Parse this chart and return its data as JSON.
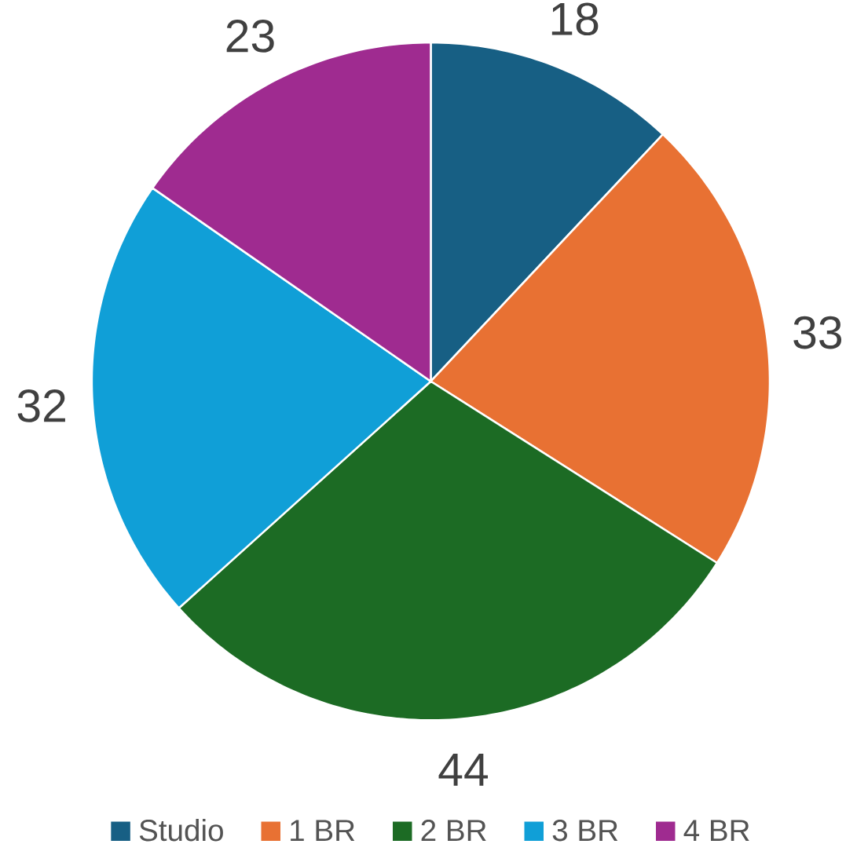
{
  "chart_data": {
    "type": "pie",
    "categories": [
      "Studio",
      "1 BR",
      "2 BR",
      "3 BR",
      "4 BR"
    ],
    "values": [
      18,
      33,
      44,
      32,
      23
    ],
    "colors": [
      "#175f84",
      "#e87133",
      "#1c6b24",
      "#109fd7",
      "#9f2b90"
    ],
    "data_labels": true,
    "legend": "bottom"
  }
}
